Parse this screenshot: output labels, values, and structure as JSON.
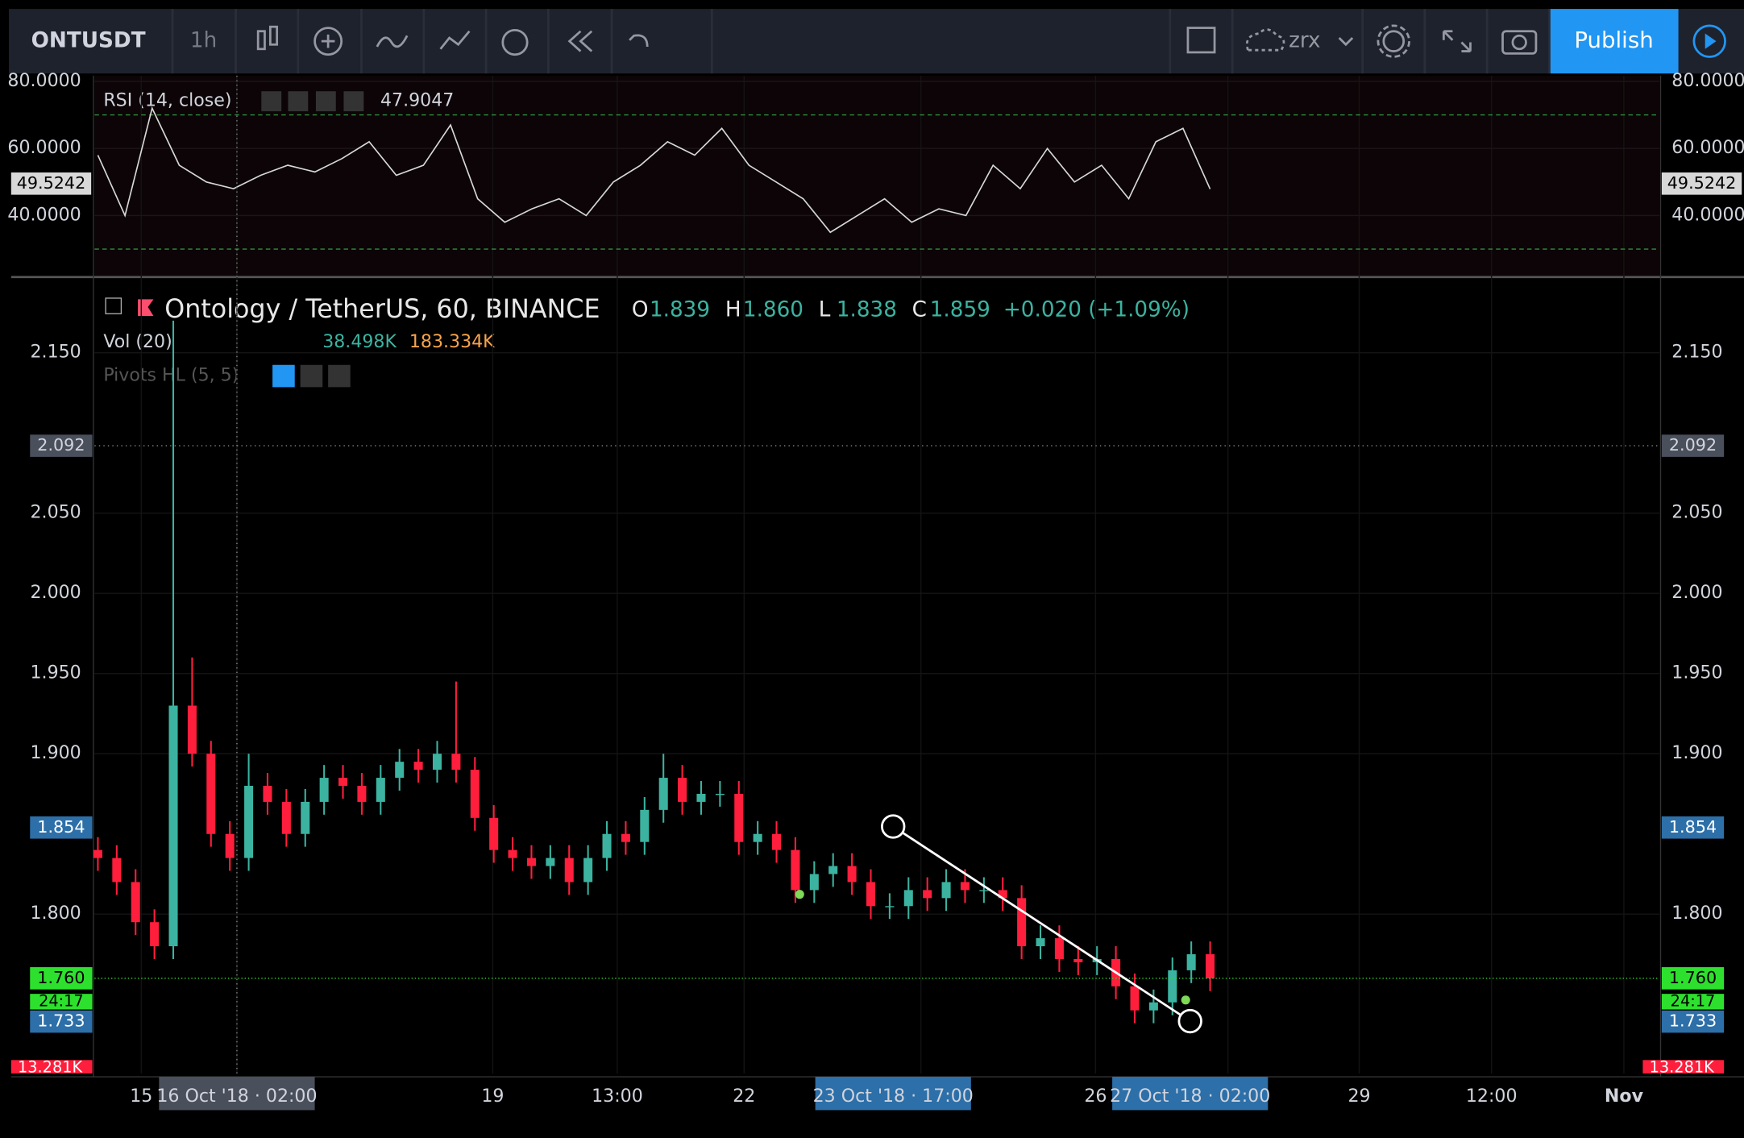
{
  "toolbar": {
    "symbol": "ONTUSDT",
    "interval": "1h",
    "layout": "zrx",
    "publish": "Publish"
  },
  "rsi": {
    "label": "RSI (14, close)",
    "value": "47.9047",
    "current": "49.5242",
    "ylim": [
      22,
      81.7
    ],
    "yticks": [
      {
        "value": 80,
        "label": "80.0000"
      },
      {
        "value": 60,
        "label": "60.0000"
      },
      {
        "value": 40,
        "label": "40.0000"
      }
    ],
    "bands": [
      70,
      30
    ],
    "color": "#d8d8d8",
    "values": [
      58,
      40,
      72,
      55,
      50,
      48,
      52,
      55,
      53,
      57,
      62,
      52,
      55,
      67,
      45,
      38,
      42,
      45,
      40,
      50,
      55,
      62,
      58,
      66,
      55,
      50,
      45,
      35,
      40,
      45,
      38,
      42,
      40,
      55,
      48,
      60,
      50,
      55,
      45,
      62,
      66,
      47.9
    ]
  },
  "chart_data": {
    "type": "candlestick",
    "title": "Ontology / TetherUS, 60, BINANCE",
    "ohlc": [
      {
        "label": "O",
        "value": "1.839"
      },
      {
        "label": "H",
        "value": "1.860"
      },
      {
        "label": "L",
        "value": "1.838"
      },
      {
        "label": "C",
        "value": "1.859"
      }
    ],
    "change": "+0.020 (+1.09%)",
    "volume_label": "Vol (20)",
    "volume_values": [
      "38.498K",
      "183.334K"
    ],
    "pivots_label": "Pivots HL (5, 5)",
    "up_color": "#3bb3a0",
    "down_color": "#ff1e3c",
    "ylim": [
      1.7007,
      2.1965
    ],
    "yticks": [
      {
        "value": 2.15,
        "label": "2.150"
      },
      {
        "value": 2.05,
        "label": "2.050"
      },
      {
        "value": 2.0,
        "label": "2.000"
      },
      {
        "value": 1.95,
        "label": "1.950"
      },
      {
        "value": 1.9,
        "label": "1.900"
      },
      {
        "value": 1.8,
        "label": "1.800"
      }
    ],
    "price_labels": [
      {
        "value": 2.092,
        "label": "2.092"
      },
      {
        "value": 1.854,
        "label": "1.854"
      },
      {
        "value": 1.76,
        "label": "1.760"
      },
      {
        "value": 1.733,
        "label": "1.733"
      }
    ],
    "countdown": "24:17",
    "volume_tag": "13.281K",
    "x_labels": [
      "15",
      "16 Oct '18 · 02:00",
      "19",
      "13:00",
      "22",
      "23 Oct '18 · 17:00",
      "26",
      "27 Oct '18 · 02:00",
      "29",
      "12:00",
      "Nov"
    ],
    "candles": [
      [
        1.84,
        1.848,
        1.827,
        1.835
      ],
      [
        1.835,
        1.843,
        1.812,
        1.82
      ],
      [
        1.82,
        1.828,
        1.787,
        1.795
      ],
      [
        1.795,
        1.803,
        1.772,
        1.78
      ],
      [
        1.78,
        2.17,
        1.772,
        1.93
      ],
      [
        1.93,
        1.96,
        1.892,
        1.9
      ],
      [
        1.9,
        1.908,
        1.842,
        1.85
      ],
      [
        1.85,
        1.858,
        1.827,
        1.835
      ],
      [
        1.835,
        1.9,
        1.827,
        1.88
      ],
      [
        1.88,
        1.888,
        1.862,
        1.87
      ],
      [
        1.87,
        1.878,
        1.842,
        1.85
      ],
      [
        1.85,
        1.878,
        1.842,
        1.87
      ],
      [
        1.87,
        1.893,
        1.862,
        1.885
      ],
      [
        1.885,
        1.893,
        1.872,
        1.88
      ],
      [
        1.88,
        1.888,
        1.862,
        1.87
      ],
      [
        1.87,
        1.893,
        1.862,
        1.885
      ],
      [
        1.885,
        1.903,
        1.877,
        1.895
      ],
      [
        1.895,
        1.903,
        1.882,
        1.89
      ],
      [
        1.89,
        1.908,
        1.882,
        1.9
      ],
      [
        1.9,
        1.945,
        1.882,
        1.89
      ],
      [
        1.89,
        1.898,
        1.852,
        1.86
      ],
      [
        1.86,
        1.868,
        1.832,
        1.84
      ],
      [
        1.84,
        1.848,
        1.827,
        1.835
      ],
      [
        1.835,
        1.843,
        1.822,
        1.83
      ],
      [
        1.83,
        1.843,
        1.822,
        1.835
      ],
      [
        1.835,
        1.843,
        1.812,
        1.82
      ],
      [
        1.82,
        1.843,
        1.812,
        1.835
      ],
      [
        1.835,
        1.858,
        1.827,
        1.85
      ],
      [
        1.85,
        1.858,
        1.837,
        1.845
      ],
      [
        1.845,
        1.873,
        1.837,
        1.865
      ],
      [
        1.865,
        1.9,
        1.857,
        1.885
      ],
      [
        1.885,
        1.893,
        1.862,
        1.87
      ],
      [
        1.87,
        1.883,
        1.862,
        1.875
      ],
      [
        1.875,
        1.883,
        1.867,
        1.875
      ],
      [
        1.875,
        1.883,
        1.837,
        1.845
      ],
      [
        1.845,
        1.858,
        1.837,
        1.85
      ],
      [
        1.85,
        1.858,
        1.832,
        1.84
      ],
      [
        1.84,
        1.848,
        1.807,
        1.815
      ],
      [
        1.815,
        1.833,
        1.807,
        1.825
      ],
      [
        1.825,
        1.838,
        1.817,
        1.83
      ],
      [
        1.83,
        1.838,
        1.812,
        1.82
      ],
      [
        1.82,
        1.828,
        1.797,
        1.805
      ],
      [
        1.805,
        1.813,
        1.797,
        1.805
      ],
      [
        1.805,
        1.823,
        1.797,
        1.815
      ],
      [
        1.815,
        1.823,
        1.802,
        1.81
      ],
      [
        1.81,
        1.828,
        1.802,
        1.82
      ],
      [
        1.82,
        1.828,
        1.807,
        1.815
      ],
      [
        1.815,
        1.823,
        1.807,
        1.815
      ],
      [
        1.815,
        1.823,
        1.802,
        1.81
      ],
      [
        1.81,
        1.818,
        1.772,
        1.78
      ],
      [
        1.78,
        1.793,
        1.772,
        1.785
      ],
      [
        1.785,
        1.793,
        1.764,
        1.772
      ],
      [
        1.772,
        1.78,
        1.762,
        1.77
      ],
      [
        1.77,
        1.78,
        1.762,
        1.772
      ],
      [
        1.772,
        1.78,
        1.747,
        1.755
      ],
      [
        1.755,
        1.763,
        1.732,
        1.74
      ],
      [
        1.74,
        1.753,
        1.732,
        1.745
      ],
      [
        1.745,
        1.773,
        1.737,
        1.765
      ],
      [
        1.765,
        1.783,
        1.757,
        1.775
      ],
      [
        1.775,
        1.783,
        1.752,
        1.76
      ]
    ]
  }
}
